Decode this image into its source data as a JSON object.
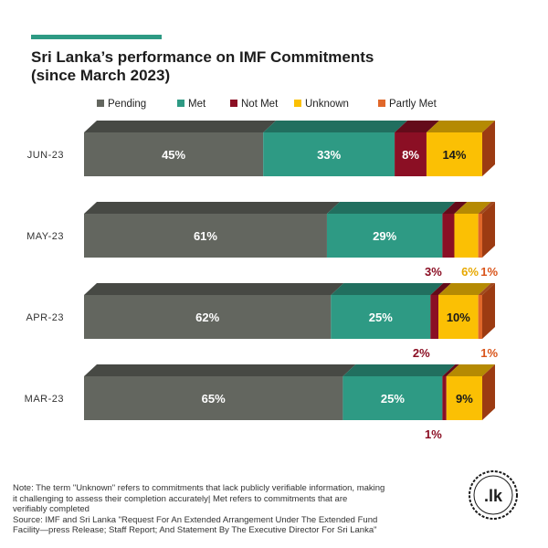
{
  "title_line1": "Sri Lanka’s performance on IMF Commitments",
  "title_line2": "(since March 2023)",
  "note_lines": [
    "Note: The term \"Unknown\" refers to commitments that lack publicly verifiable information, making",
    "it challenging to assess their completion accurately| Met refers to commitments that are",
    "verifiably completed",
    "Source: IMF and Sri Lanka \"Request For An Extended Arrangement Under The Extended Fund",
    "Facility—press Release; Staff Report; And Statement By The Executive Director For Sri Lanka\""
  ],
  "logo_text": ".lk",
  "chart_data": {
    "type": "bar",
    "orientation": "horizontal",
    "stacked": true,
    "style": "3d",
    "legend_position": "top",
    "categories": [
      "JUN-23",
      "MAY-23",
      "APR-23",
      "MAR-23"
    ],
    "series": [
      {
        "name": "Pending",
        "color": "#63665f",
        "values": [
          45,
          61,
          62,
          65
        ]
      },
      {
        "name": "Met",
        "color": "#2e9a84",
        "values": [
          33,
          29,
          25,
          25
        ]
      },
      {
        "name": "Not Met",
        "color": "#8b0f24",
        "values": [
          8,
          3,
          2,
          1
        ]
      },
      {
        "name": "Unknown",
        "color": "#fbc004",
        "values": [
          14,
          6,
          10,
          9
        ]
      },
      {
        "name": "Partly Met",
        "color": "#e0672a",
        "values": [
          0,
          1,
          1,
          0
        ]
      }
    ],
    "labels": [
      [
        "45%",
        "33%",
        "8%",
        "14%",
        ""
      ],
      [
        "61%",
        "29%",
        "3%",
        "6%",
        "1%"
      ],
      [
        "62%",
        "25%",
        "2%",
        "10%",
        "1%"
      ],
      [
        "65%",
        "25%",
        "1%",
        "9%",
        ""
      ]
    ]
  }
}
